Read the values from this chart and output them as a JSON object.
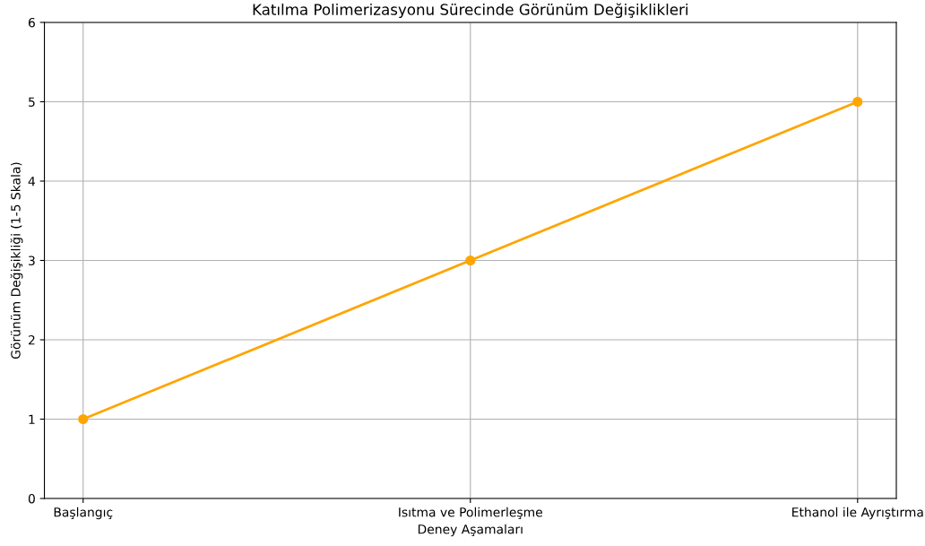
{
  "chart_data": {
    "type": "line",
    "title": "Katılma Polimerizasyonu Sürecinde Görünüm Değişiklikleri",
    "xlabel": "Deney Aşamaları",
    "ylabel": "Görünüm Değişikliği (1-5 Skala)",
    "categories": [
      "Başlangıç",
      "Isıtma ve Polimerleşme",
      "Ethanol ile Ayrıştırma"
    ],
    "series": [
      {
        "color": "#ffa500",
        "values": [
          1,
          3,
          5
        ]
      }
    ],
    "ylim": [
      0,
      6
    ],
    "yticks": [
      0,
      1,
      2,
      3,
      4,
      5,
      6
    ],
    "grid": true,
    "marker": "circle",
    "line_style": "solid"
  }
}
